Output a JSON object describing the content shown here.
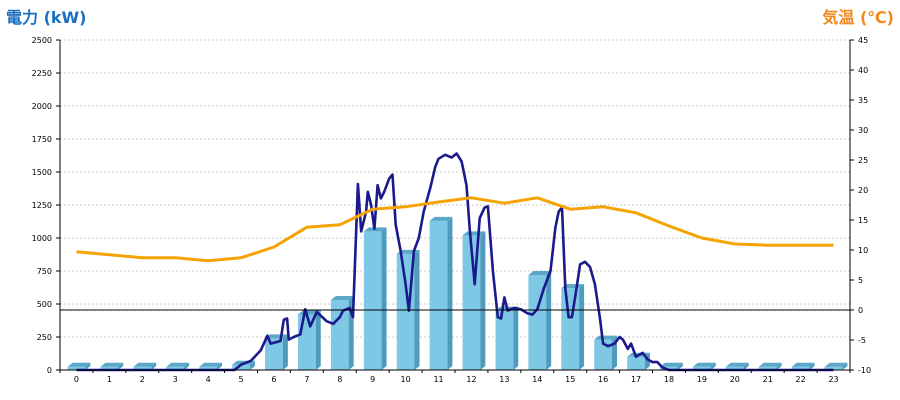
{
  "chart_data": {
    "type": "bar",
    "left_axis_label": "電力 (kW)",
    "right_axis_label": "気温 (℃)",
    "categories": [
      "0",
      "1",
      "2",
      "3",
      "4",
      "5",
      "6",
      "7",
      "8",
      "9",
      "10",
      "11",
      "12",
      "13",
      "14",
      "15",
      "16",
      "17",
      "18",
      "19",
      "20",
      "21",
      "22",
      "23"
    ],
    "y_left": {
      "min": 0,
      "max": 2500,
      "ticks": [
        0,
        250,
        500,
        750,
        1000,
        1250,
        1500,
        1750,
        2000,
        2250,
        2500
      ]
    },
    "y_right": {
      "min": -10,
      "max": 45,
      "ticks": [
        -10,
        -5,
        0,
        5,
        10,
        15,
        20,
        25,
        30,
        35,
        40,
        45
      ]
    },
    "grid": true,
    "series": [
      {
        "kind": "bar",
        "axis": "left",
        "values": [
          25,
          25,
          25,
          25,
          25,
          40,
          240,
          420,
          530,
          1050,
          880,
          1130,
          1020,
          450,
          720,
          620,
          230,
          100,
          25,
          25,
          25,
          25,
          25,
          25
        ],
        "color": "#7ec8e6"
      },
      {
        "kind": "line",
        "axis": "left",
        "color": "#1a1a8c",
        "points": [
          [
            0,
            0
          ],
          [
            1,
            0
          ],
          [
            2,
            0
          ],
          [
            3,
            0
          ],
          [
            4,
            0
          ],
          [
            4.8,
            0
          ],
          [
            5.0,
            40
          ],
          [
            5.3,
            70
          ],
          [
            5.6,
            150
          ],
          [
            5.8,
            260
          ],
          [
            5.9,
            200
          ],
          [
            6.2,
            220
          ],
          [
            6.3,
            380
          ],
          [
            6.4,
            390
          ],
          [
            6.45,
            230
          ],
          [
            6.6,
            250
          ],
          [
            6.8,
            270
          ],
          [
            6.95,
            460
          ],
          [
            7.1,
            330
          ],
          [
            7.3,
            440
          ],
          [
            7.6,
            370
          ],
          [
            7.8,
            350
          ],
          [
            8.0,
            400
          ],
          [
            8.1,
            450
          ],
          [
            8.3,
            470
          ],
          [
            8.4,
            400
          ],
          [
            8.55,
            1410
          ],
          [
            8.65,
            1050
          ],
          [
            8.8,
            1200
          ],
          [
            8.85,
            1350
          ],
          [
            8.95,
            1250
          ],
          [
            9.05,
            1070
          ],
          [
            9.15,
            1400
          ],
          [
            9.25,
            1300
          ],
          [
            9.35,
            1350
          ],
          [
            9.5,
            1450
          ],
          [
            9.6,
            1480
          ],
          [
            9.7,
            1100
          ],
          [
            9.85,
            900
          ],
          [
            10.0,
            650
          ],
          [
            10.1,
            450
          ],
          [
            10.25,
            900
          ],
          [
            10.4,
            1000
          ],
          [
            10.55,
            1200
          ],
          [
            10.75,
            1380
          ],
          [
            10.9,
            1540
          ],
          [
            11.0,
            1600
          ],
          [
            11.2,
            1630
          ],
          [
            11.4,
            1610
          ],
          [
            11.55,
            1640
          ],
          [
            11.7,
            1580
          ],
          [
            11.85,
            1400
          ],
          [
            11.95,
            1060
          ],
          [
            12.1,
            650
          ],
          [
            12.25,
            1150
          ],
          [
            12.4,
            1230
          ],
          [
            12.5,
            1240
          ],
          [
            12.65,
            750
          ],
          [
            12.8,
            400
          ],
          [
            12.9,
            390
          ],
          [
            13.0,
            550
          ],
          [
            13.1,
            450
          ],
          [
            13.3,
            470
          ],
          [
            13.5,
            460
          ],
          [
            13.7,
            430
          ],
          [
            13.85,
            420
          ],
          [
            14.0,
            460
          ],
          [
            14.2,
            620
          ],
          [
            14.4,
            750
          ],
          [
            14.55,
            1080
          ],
          [
            14.65,
            1200
          ],
          [
            14.75,
            1230
          ],
          [
            14.85,
            620
          ],
          [
            14.95,
            400
          ],
          [
            15.05,
            400
          ],
          [
            15.15,
            550
          ],
          [
            15.3,
            800
          ],
          [
            15.45,
            820
          ],
          [
            15.6,
            780
          ],
          [
            15.75,
            650
          ],
          [
            15.9,
            400
          ],
          [
            16.0,
            200
          ],
          [
            16.15,
            180
          ],
          [
            16.35,
            200
          ],
          [
            16.5,
            250
          ],
          [
            16.6,
            230
          ],
          [
            16.75,
            160
          ],
          [
            16.85,
            200
          ],
          [
            17.0,
            100
          ],
          [
            17.2,
            130
          ],
          [
            17.35,
            80
          ],
          [
            17.5,
            60
          ],
          [
            17.65,
            60
          ],
          [
            17.8,
            20
          ],
          [
            18.0,
            0
          ],
          [
            19,
            0
          ],
          [
            20,
            0
          ],
          [
            21,
            0
          ],
          [
            22,
            0
          ],
          [
            23,
            0
          ]
        ]
      },
      {
        "kind": "line",
        "axis": "right",
        "color": "#f5a300",
        "points": [
          [
            0,
            9.7
          ],
          [
            1,
            9.2
          ],
          [
            2,
            8.7
          ],
          [
            3,
            8.7
          ],
          [
            4,
            8.2
          ],
          [
            5,
            8.7
          ],
          [
            6,
            10.5
          ],
          [
            7,
            13.8
          ],
          [
            8,
            14.2
          ],
          [
            9,
            16.8
          ],
          [
            10,
            17.2
          ],
          [
            11,
            18.0
          ],
          [
            12,
            18.7
          ],
          [
            13,
            17.8
          ],
          [
            14,
            18.7
          ],
          [
            15,
            16.8
          ],
          [
            16,
            17.2
          ],
          [
            17,
            16.2
          ],
          [
            18,
            14.0
          ],
          [
            19,
            12.0
          ],
          [
            20,
            11.0
          ],
          [
            21,
            10.8
          ],
          [
            22,
            10.8
          ],
          [
            23,
            10.8
          ]
        ]
      }
    ]
  }
}
